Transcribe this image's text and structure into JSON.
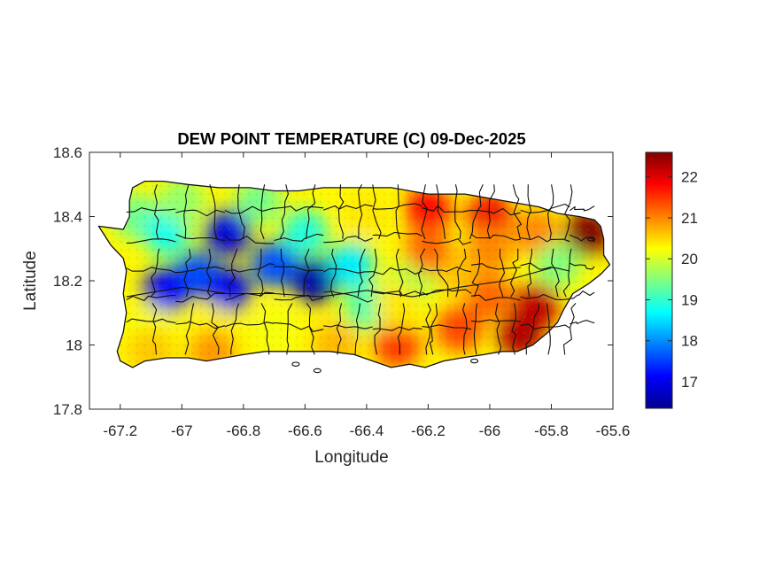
{
  "chart_data": {
    "type": "heatmap",
    "title": "DEW POINT TEMPERATURE (C) 09-Dec-2025",
    "xlabel": "Longitude",
    "ylabel": "Latitude",
    "xlim": [
      -67.3,
      -65.6
    ],
    "ylim": [
      17.8,
      18.6
    ],
    "xticks": [
      -67.2,
      -67,
      -66.8,
      -66.6,
      -66.4,
      -66.2,
      -66,
      -65.8,
      -65.6
    ],
    "xtick_labels": [
      "-67.2",
      "-67",
      "-66.8",
      "-66.6",
      "-66.4",
      "-66.2",
      "-66",
      "-65.8",
      "-65.6"
    ],
    "yticks": [
      17.8,
      18,
      18.2,
      18.4,
      18.6
    ],
    "ytick_labels": [
      "17.8",
      "18",
      "18.2",
      "18.4",
      "18.6"
    ],
    "colorbar": {
      "colormap": "jet",
      "range": [
        16.35,
        22.6
      ],
      "ticks": [
        17,
        18,
        19,
        20,
        21,
        22
      ],
      "tick_labels": [
        "17",
        "18",
        "19",
        "20",
        "21",
        "22"
      ]
    },
    "colormap_stops": [
      "#00008f",
      "#0000ff",
      "#0080ff",
      "#00ffff",
      "#80ff80",
      "#ffff00",
      "#ff8000",
      "#ff0000",
      "#800000"
    ],
    "grid": false,
    "field_samples": [
      {
        "lon": -67.15,
        "lat": 18.4,
        "value": 19.4
      },
      {
        "lon": -67.05,
        "lat": 18.35,
        "value": 18.8
      },
      {
        "lon": -66.85,
        "lat": 18.35,
        "value": 16.9
      },
      {
        "lon": -66.95,
        "lat": 18.22,
        "value": 17.6
      },
      {
        "lon": -67.05,
        "lat": 18.17,
        "value": 17.1
      },
      {
        "lon": -66.85,
        "lat": 18.17,
        "value": 17.0
      },
      {
        "lon": -66.57,
        "lat": 18.2,
        "value": 16.5
      },
      {
        "lon": -66.7,
        "lat": 18.25,
        "value": 17.6
      },
      {
        "lon": -66.45,
        "lat": 18.25,
        "value": 18.6
      },
      {
        "lon": -66.6,
        "lat": 18.35,
        "value": 18.9
      },
      {
        "lon": -66.4,
        "lat": 18.4,
        "value": 20.4
      },
      {
        "lon": -66.2,
        "lat": 18.42,
        "value": 21.8
      },
      {
        "lon": -66.0,
        "lat": 18.4,
        "value": 21.9
      },
      {
        "lon": -65.85,
        "lat": 18.35,
        "value": 21.0
      },
      {
        "lon": -65.68,
        "lat": 18.35,
        "value": 22.6
      },
      {
        "lon": -65.78,
        "lat": 18.25,
        "value": 19.5
      },
      {
        "lon": -66.1,
        "lat": 18.22,
        "value": 20.6
      },
      {
        "lon": -66.25,
        "lat": 18.2,
        "value": 19.8
      },
      {
        "lon": -65.85,
        "lat": 18.12,
        "value": 22.2
      },
      {
        "lon": -65.9,
        "lat": 18.03,
        "value": 22.3
      },
      {
        "lon": -66.1,
        "lat": 18.05,
        "value": 21.4
      },
      {
        "lon": -66.3,
        "lat": 18.0,
        "value": 21.5
      },
      {
        "lon": -66.5,
        "lat": 18.0,
        "value": 20.7
      },
      {
        "lon": -66.7,
        "lat": 18.05,
        "value": 20.2
      },
      {
        "lon": -66.9,
        "lat": 18.05,
        "value": 20.3
      },
      {
        "lon": -67.1,
        "lat": 18.05,
        "value": 20.2
      },
      {
        "lon": -67.1,
        "lat": 17.98,
        "value": 20.6
      },
      {
        "lon": -66.9,
        "lat": 17.98,
        "value": 20.9
      },
      {
        "lon": -66.4,
        "lat": 18.12,
        "value": 19.2
      },
      {
        "lon": -66.2,
        "lat": 18.3,
        "value": 21.2
      },
      {
        "lon": -66.0,
        "lat": 18.3,
        "value": 21.0
      },
      {
        "lon": -66.75,
        "lat": 18.45,
        "value": 19.4
      },
      {
        "lon": -67.0,
        "lat": 18.45,
        "value": 19.6
      },
      {
        "lon": -66.3,
        "lat": 18.12,
        "value": 20.4
      },
      {
        "lon": -66.0,
        "lat": 18.15,
        "value": 21.2
      }
    ]
  }
}
